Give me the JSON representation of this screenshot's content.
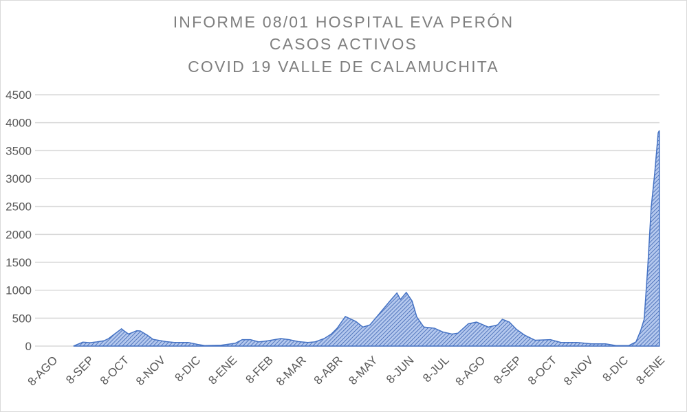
{
  "chart_data": {
    "type": "area",
    "title": [
      "INFORME 08/01 HOSPITAL EVA PERÓN",
      "CASOS ACTIVOS",
      "COVID 19 VALLE DE CALAMUCHITA"
    ],
    "xlabel": "",
    "ylabel": "",
    "ylim": [
      0,
      4500
    ],
    "yticks": [
      0,
      500,
      1000,
      1500,
      2000,
      2500,
      3000,
      3500,
      4000,
      4500
    ],
    "grid": true,
    "legend": "none",
    "colors": {
      "line": "#4472c4",
      "fill": "#a9c0ea",
      "hatch": "#3a62b0",
      "grid": "#d9d9d9",
      "text": "#595959",
      "title": "#7f7f7f"
    },
    "xticks": [
      {
        "date": "2020-08-08",
        "label": "8-AGO"
      },
      {
        "date": "2020-09-08",
        "label": "8-SEP"
      },
      {
        "date": "2020-10-08",
        "label": "8-OCT"
      },
      {
        "date": "2020-11-08",
        "label": "8-NOV"
      },
      {
        "date": "2020-12-08",
        "label": "8-DIC"
      },
      {
        "date": "2021-01-08",
        "label": "8-ENE"
      },
      {
        "date": "2021-02-08",
        "label": "8-FEB"
      },
      {
        "date": "2021-03-08",
        "label": "8-MAR"
      },
      {
        "date": "2021-04-08",
        "label": "8-ABR"
      },
      {
        "date": "2021-05-08",
        "label": "8-MAY"
      },
      {
        "date": "2021-06-08",
        "label": "8-JUN"
      },
      {
        "date": "2021-07-08",
        "label": "8-JUL"
      },
      {
        "date": "2021-08-08",
        "label": "8-AGO"
      },
      {
        "date": "2021-09-08",
        "label": "8-SEP"
      },
      {
        "date": "2021-10-08",
        "label": "8-OCT"
      },
      {
        "date": "2021-11-08",
        "label": "8-NOV"
      },
      {
        "date": "2021-12-08",
        "label": "8-DIC"
      },
      {
        "date": "2022-01-08",
        "label": "8-ENE"
      }
    ],
    "series": [
      {
        "points": [
          [
            "2020-08-26",
            0
          ],
          [
            "2020-09-03",
            70
          ],
          [
            "2020-09-09",
            60
          ],
          [
            "2020-09-15",
            75
          ],
          [
            "2020-09-21",
            95
          ],
          [
            "2020-09-25",
            135
          ],
          [
            "2020-09-30",
            215
          ],
          [
            "2020-10-06",
            310
          ],
          [
            "2020-10-08",
            275
          ],
          [
            "2020-10-12",
            215
          ],
          [
            "2020-10-19",
            275
          ],
          [
            "2020-10-22",
            270
          ],
          [
            "2020-10-28",
            195
          ],
          [
            "2020-11-02",
            120
          ],
          [
            "2020-11-13",
            80
          ],
          [
            "2020-11-20",
            65
          ],
          [
            "2020-12-02",
            65
          ],
          [
            "2020-12-10",
            30
          ],
          [
            "2020-12-16",
            10
          ],
          [
            "2020-12-30",
            15
          ],
          [
            "2021-01-11",
            50
          ],
          [
            "2021-01-17",
            115
          ],
          [
            "2021-01-24",
            115
          ],
          [
            "2021-01-31",
            75
          ],
          [
            "2021-02-08",
            95
          ],
          [
            "2021-02-19",
            135
          ],
          [
            "2021-02-26",
            115
          ],
          [
            "2021-03-06",
            80
          ],
          [
            "2021-03-14",
            65
          ],
          [
            "2021-03-20",
            75
          ],
          [
            "2021-03-28",
            135
          ],
          [
            "2021-04-03",
            215
          ],
          [
            "2021-04-08",
            320
          ],
          [
            "2021-04-15",
            530
          ],
          [
            "2021-04-24",
            440
          ],
          [
            "2021-04-30",
            340
          ],
          [
            "2021-05-06",
            380
          ],
          [
            "2021-05-14",
            580
          ],
          [
            "2021-05-23",
            805
          ],
          [
            "2021-05-29",
            950
          ],
          [
            "2021-06-01",
            835
          ],
          [
            "2021-06-06",
            960
          ],
          [
            "2021-06-11",
            805
          ],
          [
            "2021-06-15",
            520
          ],
          [
            "2021-06-21",
            340
          ],
          [
            "2021-06-30",
            320
          ],
          [
            "2021-07-07",
            255
          ],
          [
            "2021-07-15",
            215
          ],
          [
            "2021-07-20",
            230
          ],
          [
            "2021-07-29",
            400
          ],
          [
            "2021-08-05",
            430
          ],
          [
            "2021-08-15",
            340
          ],
          [
            "2021-08-23",
            380
          ],
          [
            "2021-08-27",
            480
          ],
          [
            "2021-09-02",
            430
          ],
          [
            "2021-09-08",
            300
          ],
          [
            "2021-09-15",
            195
          ],
          [
            "2021-09-24",
            105
          ],
          [
            "2021-10-07",
            115
          ],
          [
            "2021-10-16",
            65
          ],
          [
            "2021-10-30",
            65
          ],
          [
            "2021-11-11",
            40
          ],
          [
            "2021-11-23",
            40
          ],
          [
            "2021-12-02",
            10
          ],
          [
            "2021-12-13",
            10
          ],
          [
            "2021-12-19",
            75
          ],
          [
            "2021-12-23",
            275
          ],
          [
            "2021-12-26",
            480
          ],
          [
            "2021-12-29",
            1390
          ],
          [
            "2022-01-01",
            2480
          ],
          [
            "2022-01-04",
            3090
          ],
          [
            "2022-01-07",
            3820
          ],
          [
            "2022-01-08",
            3860
          ]
        ]
      }
    ]
  }
}
